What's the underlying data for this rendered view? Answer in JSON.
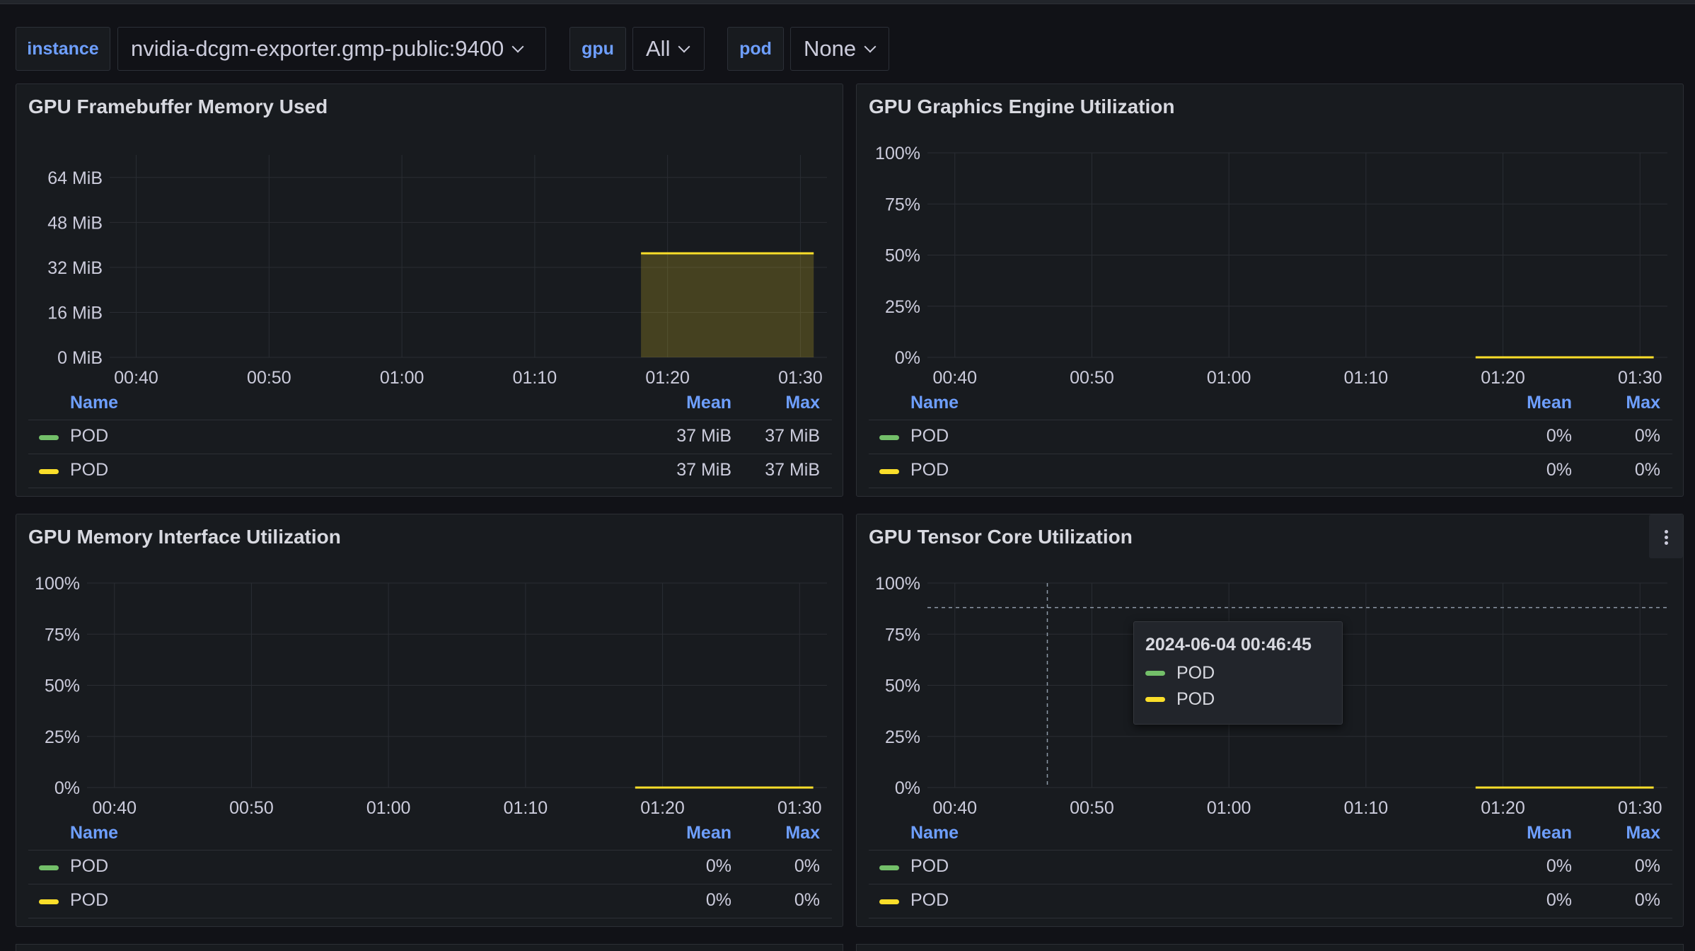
{
  "variables": [
    {
      "label": "instance",
      "value": "nvidia-dcgm-exporter.gmp-public:9400"
    },
    {
      "label": "gpu",
      "value": "All"
    },
    {
      "label": "pod",
      "value": "None"
    }
  ],
  "colors": {
    "series_green": "#73bf69",
    "series_yellow": "#fade2a",
    "accent_blue": "#6e9fff"
  },
  "legend_headers": {
    "name": "Name",
    "mean": "Mean",
    "max": "Max"
  },
  "panels": [
    {
      "title": "GPU Framebuffer Memory Used",
      "legend": [
        {
          "name": "POD",
          "color": "#73bf69",
          "mean": "37 MiB",
          "max": "37 MiB"
        },
        {
          "name": "POD",
          "color": "#fade2a",
          "mean": "37 MiB",
          "max": "37 MiB"
        }
      ]
    },
    {
      "title": "GPU Graphics Engine Utilization",
      "legend": [
        {
          "name": "POD",
          "color": "#73bf69",
          "mean": "0%",
          "max": "0%"
        },
        {
          "name": "POD",
          "color": "#fade2a",
          "mean": "0%",
          "max": "0%"
        }
      ]
    },
    {
      "title": "GPU Memory Interface Utilization",
      "legend": [
        {
          "name": "POD",
          "color": "#73bf69",
          "mean": "0%",
          "max": "0%"
        },
        {
          "name": "POD",
          "color": "#fade2a",
          "mean": "0%",
          "max": "0%"
        }
      ]
    },
    {
      "title": "GPU Tensor Core Utilization",
      "legend": [
        {
          "name": "POD",
          "color": "#73bf69",
          "mean": "0%",
          "max": "0%"
        },
        {
          "name": "POD",
          "color": "#fade2a",
          "mean": "0%",
          "max": "0%"
        }
      ]
    }
  ],
  "tooltip": {
    "time": "2024-06-04 00:46:45",
    "series": [
      {
        "name": "POD",
        "color": "#73bf69"
      },
      {
        "name": "POD",
        "color": "#fade2a"
      }
    ]
  },
  "chart_data": [
    {
      "type": "area",
      "title": "GPU Framebuffer Memory Used",
      "x_ticks": [
        "00:40",
        "00:50",
        "01:00",
        "01:10",
        "01:20",
        "01:30"
      ],
      "y_ticks": [
        "0 MiB",
        "16 MiB",
        "32 MiB",
        "48 MiB",
        "64 MiB"
      ],
      "ylim": [
        0,
        72
      ],
      "xlim": [
        "00:38",
        "01:32"
      ],
      "grid": true,
      "series": [
        {
          "name": "POD",
          "color": "#fade2a",
          "x": [
            "01:18",
            "01:31"
          ],
          "values": [
            37,
            37
          ]
        }
      ]
    },
    {
      "type": "line",
      "title": "GPU Graphics Engine Utilization",
      "x_ticks": [
        "00:40",
        "00:50",
        "01:00",
        "01:10",
        "01:20",
        "01:30"
      ],
      "y_ticks": [
        "0%",
        "25%",
        "50%",
        "75%",
        "100%"
      ],
      "ylim": [
        0,
        100
      ],
      "xlim": [
        "00:38",
        "01:32"
      ],
      "grid": true,
      "series": [
        {
          "name": "POD",
          "color": "#fade2a",
          "x": [
            "01:18",
            "01:31"
          ],
          "values": [
            0,
            0
          ]
        }
      ]
    },
    {
      "type": "line",
      "title": "GPU Memory Interface Utilization",
      "x_ticks": [
        "00:40",
        "00:50",
        "01:00",
        "01:10",
        "01:20",
        "01:30"
      ],
      "y_ticks": [
        "0%",
        "25%",
        "50%",
        "75%",
        "100%"
      ],
      "ylim": [
        0,
        100
      ],
      "xlim": [
        "00:38",
        "01:32"
      ],
      "grid": true,
      "series": [
        {
          "name": "POD",
          "color": "#fade2a",
          "x": [
            "01:18",
            "01:31"
          ],
          "values": [
            0,
            0
          ]
        }
      ]
    },
    {
      "type": "line",
      "title": "GPU Tensor Core Utilization",
      "x_ticks": [
        "00:40",
        "00:50",
        "01:00",
        "01:10",
        "01:20",
        "01:30"
      ],
      "y_ticks": [
        "0%",
        "25%",
        "50%",
        "75%",
        "100%"
      ],
      "ylim": [
        0,
        100
      ],
      "xlim": [
        "00:38",
        "01:32"
      ],
      "grid": true,
      "crosshair": {
        "x": "00:46:45",
        "y": 88
      },
      "series": [
        {
          "name": "POD",
          "color": "#fade2a",
          "x": [
            "01:18",
            "01:31"
          ],
          "values": [
            0,
            0
          ]
        }
      ]
    }
  ]
}
